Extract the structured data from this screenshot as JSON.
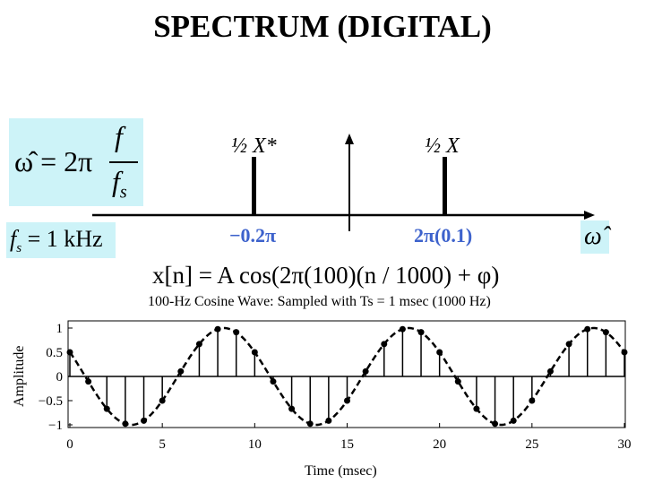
{
  "title": "SPECTRUM (DIGITAL)",
  "formula_omega": {
    "lhs": "ω̂ = 2π",
    "num": "f",
    "den": "f",
    "den_sub": "s"
  },
  "formula_fs": {
    "f": "f",
    "sub": "s",
    "rest": " = 1 kHz"
  },
  "omega_axis_label": "ω̂",
  "spectrum": {
    "left_line_label": "½ X*",
    "right_line_label": "½ X",
    "left_freq_label": "−0.2π",
    "right_freq_label": "2π(0.1)"
  },
  "signal_equation": "x[n] = A cos(2π(100)(n / 1000) + φ)",
  "colors": {
    "box": "#cdf3f8",
    "freq_label": "#3d62cc"
  },
  "chart_data": {
    "type": "stem",
    "title": "100-Hz Cosine Wave: Sampled with Ts = 1 msec (1000 Hz)",
    "xlabel": "Time (msec)",
    "ylabel": "Amplitude",
    "xlim": [
      0,
      30
    ],
    "ylim": [
      -1.1,
      1.1
    ],
    "xticks": [
      "0",
      "5",
      "10",
      "15",
      "20",
      "25",
      "30"
    ],
    "yticks": [
      "1",
      "0.5",
      "0",
      "−0.5",
      "−1"
    ],
    "continuous_curve": "cos(0.2πt + π/3), dashed",
    "x": [
      0,
      1,
      2,
      3,
      4,
      5,
      6,
      7,
      8,
      9,
      10,
      11,
      12,
      13,
      14,
      15,
      16,
      17,
      18,
      19,
      20,
      21,
      22,
      23,
      24,
      25,
      26,
      27,
      28,
      29,
      30
    ],
    "values": [
      0.5,
      -0.105,
      -0.669,
      -0.978,
      -0.914,
      -0.5,
      0.105,
      0.669,
      0.978,
      0.914,
      0.5,
      -0.105,
      -0.669,
      -0.978,
      -0.914,
      -0.5,
      0.105,
      0.669,
      0.978,
      0.914,
      0.5,
      -0.105,
      -0.669,
      -0.978,
      -0.914,
      -0.5,
      0.105,
      0.669,
      0.978,
      0.914,
      0.5
    ]
  }
}
